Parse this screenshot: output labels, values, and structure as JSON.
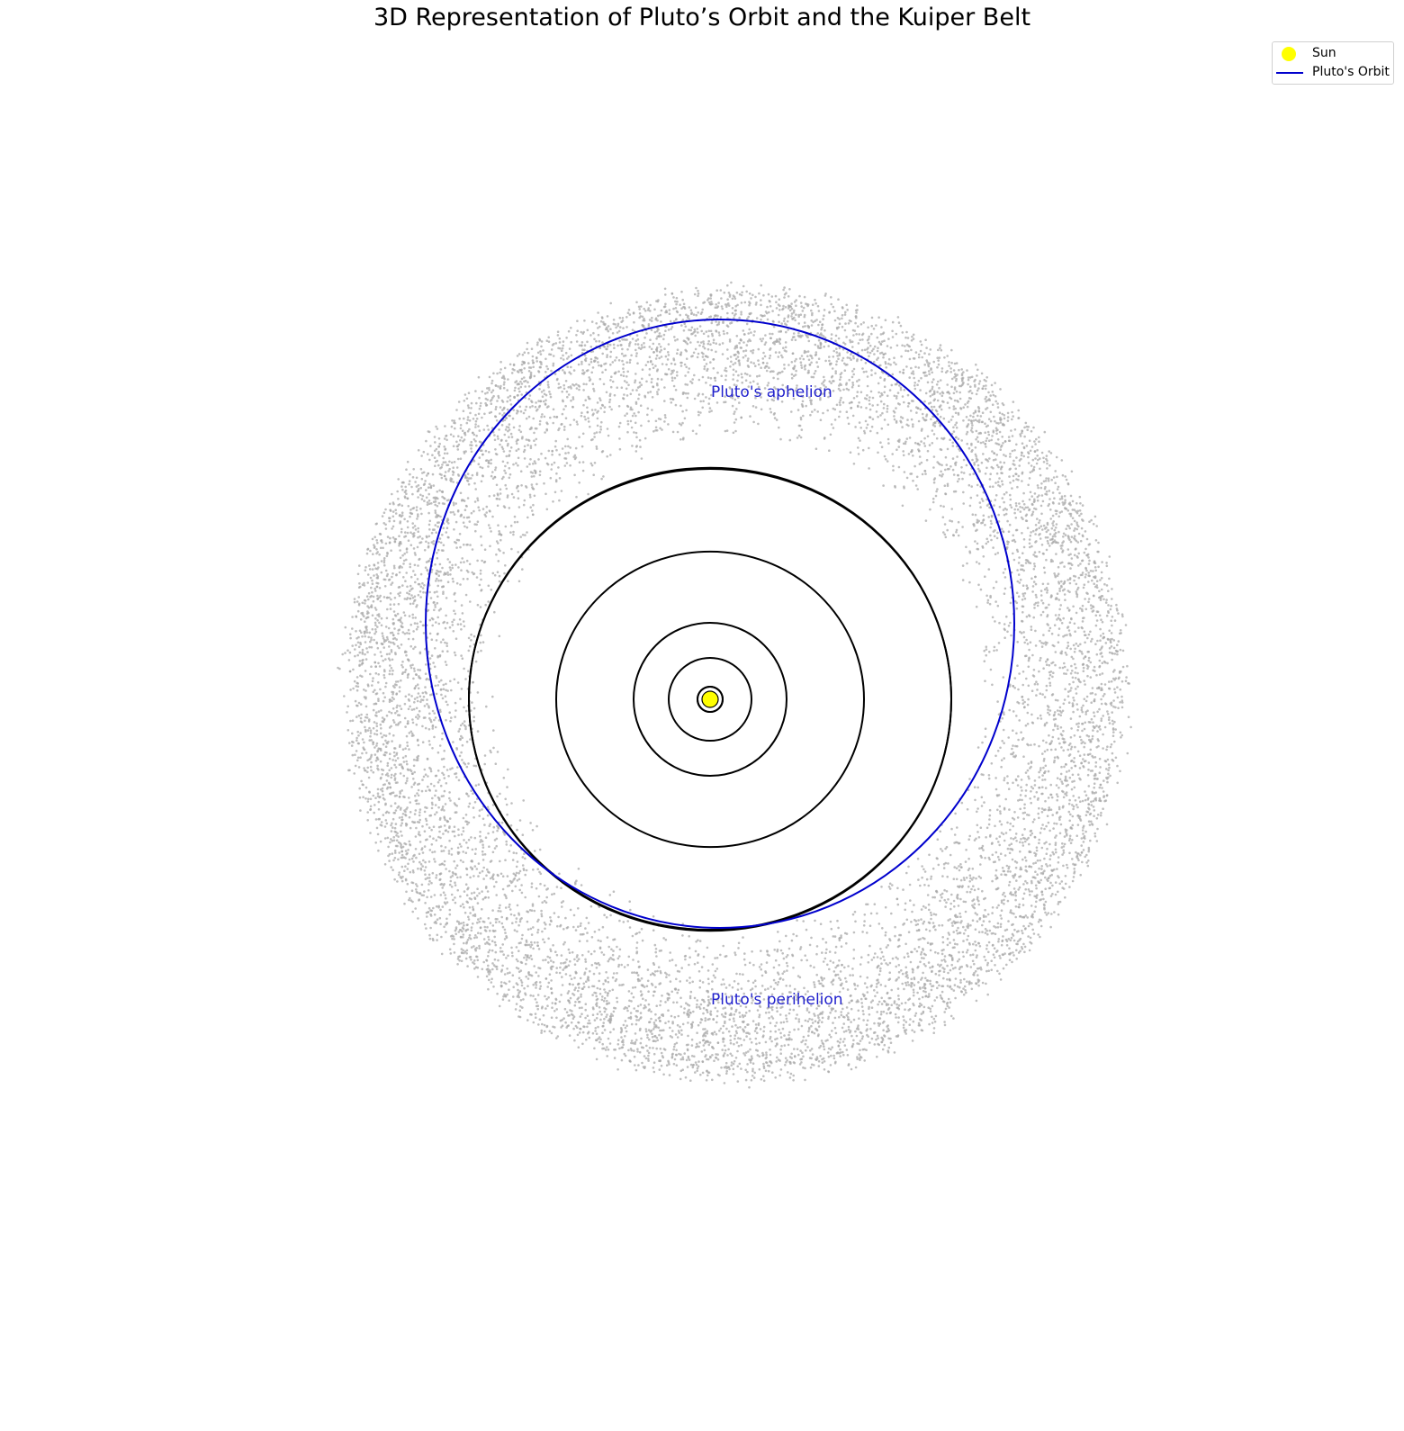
{
  "chart_data": {
    "type": "scatter",
    "title": "3D Representation of Pluto’s Orbit and the Kuiper Belt",
    "xlabel": "",
    "ylabel": "",
    "grid": false,
    "axes_visible": false,
    "legend": {
      "placement": "top-right",
      "entries": [
        {
          "label": "Sun",
          "marker": "circle",
          "color": "#ffff00"
        },
        {
          "label": "Pluto's Orbit",
          "marker": "line",
          "color": "#0000cd"
        }
      ]
    },
    "sun": {
      "x": 0,
      "y": 0,
      "color": "#ffff00",
      "edge_color": "#000000"
    },
    "planet_orbits": {
      "unit": "AU",
      "color": "#000000",
      "radii": [
        0.39,
        0.72,
        1.0,
        1.52,
        5.2,
        9.58,
        19.2,
        30.05
      ]
    },
    "pluto_orbit": {
      "label": "Pluto's Orbit",
      "color": "#0000cd",
      "perihelion_au": 29.7,
      "aphelion_au": 49.3,
      "semi_major_axis_au": 39.5
    },
    "kuiper_belt": {
      "color": "#a9a9a9",
      "inner_radius_au": 30,
      "outer_radius_au": 50,
      "point_count_approx": 10000
    },
    "annotations": [
      {
        "text": "Pluto's aphelion",
        "x": 0,
        "y": 38.5,
        "color": "#1f1fcc"
      },
      {
        "text": "Pluto's perihelion",
        "x": 0,
        "y": -37.5,
        "color": "#1f1fcc"
      }
    ]
  }
}
